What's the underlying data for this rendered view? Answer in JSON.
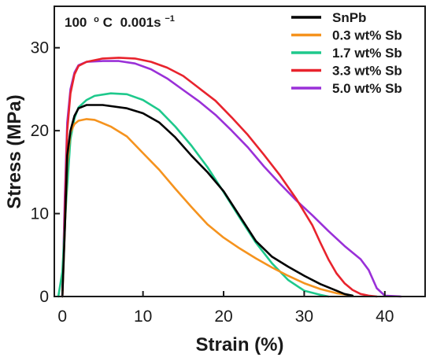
{
  "chart_data": {
    "type": "line",
    "title": "",
    "annotation": {
      "value": "100",
      "degree_symbol": "o",
      "unit": "C",
      "rate": "0.001s",
      "rate_exponent": "−1"
    },
    "xlabel": "Strain (%)",
    "ylabel": "Stress (MPa)",
    "xlim": [
      -1,
      45
    ],
    "ylim": [
      0,
      35
    ],
    "xticks": [
      0,
      10,
      20,
      30,
      40
    ],
    "yticks": [
      0,
      10,
      20,
      30
    ],
    "grid": false,
    "legend_position": "top-right",
    "series": [
      {
        "name": "SnPb",
        "color": "#000000",
        "points": [
          [
            0,
            0
          ],
          [
            0.3,
            8
          ],
          [
            0.6,
            17
          ],
          [
            1,
            20
          ],
          [
            1.5,
            21.8
          ],
          [
            2,
            22.7
          ],
          [
            3,
            23.1
          ],
          [
            5,
            23.1
          ],
          [
            8,
            22.7
          ],
          [
            10,
            22.1
          ],
          [
            12,
            21.0
          ],
          [
            14,
            19.2
          ],
          [
            16,
            17.0
          ],
          [
            18,
            15.0
          ],
          [
            20,
            12.7
          ],
          [
            22,
            9.7
          ],
          [
            24,
            6.7
          ],
          [
            26,
            4.8
          ],
          [
            28,
            3.6
          ],
          [
            30,
            2.5
          ],
          [
            32,
            1.5
          ],
          [
            34,
            0.7
          ],
          [
            35,
            0.3
          ],
          [
            36,
            0.1
          ]
        ]
      },
      {
        "name": "0.3 wt% Sb",
        "color": "#f5931e",
        "points": [
          [
            0,
            0
          ],
          [
            0.3,
            8
          ],
          [
            0.6,
            16
          ],
          [
            1,
            19.8
          ],
          [
            1.5,
            20.8
          ],
          [
            2,
            21.2
          ],
          [
            3,
            21.4
          ],
          [
            4,
            21.3
          ],
          [
            6,
            20.5
          ],
          [
            8,
            19.3
          ],
          [
            10,
            17.3
          ],
          [
            12,
            15.3
          ],
          [
            14,
            13.0
          ],
          [
            16,
            10.8
          ],
          [
            18,
            8.7
          ],
          [
            20,
            7.1
          ],
          [
            22,
            5.8
          ],
          [
            24,
            4.6
          ],
          [
            26,
            3.5
          ],
          [
            28,
            2.5
          ],
          [
            30,
            1.6
          ],
          [
            32,
            0.9
          ],
          [
            34,
            0.4
          ],
          [
            36,
            0.1
          ]
        ]
      },
      {
        "name": "1.7 wt% Sb",
        "color": "#1ec98c",
        "points": [
          [
            -0.5,
            0
          ],
          [
            0,
            3
          ],
          [
            0.5,
            12
          ],
          [
            1,
            19
          ],
          [
            1.5,
            21.5
          ],
          [
            2,
            22.8
          ],
          [
            3,
            23.7
          ],
          [
            4,
            24.2
          ],
          [
            6,
            24.5
          ],
          [
            8,
            24.4
          ],
          [
            10,
            23.7
          ],
          [
            12,
            22.5
          ],
          [
            14,
            20.5
          ],
          [
            16,
            18.2
          ],
          [
            18,
            15.6
          ],
          [
            20,
            12.6
          ],
          [
            22,
            9.5
          ],
          [
            24,
            6.5
          ],
          [
            26,
            4.0
          ],
          [
            28,
            2.0
          ],
          [
            30,
            0.7
          ],
          [
            32,
            0.2
          ],
          [
            33,
            0
          ]
        ]
      },
      {
        "name": "3.3 wt% Sb",
        "color": "#e8232d",
        "points": [
          [
            0,
            0
          ],
          [
            0.3,
            10
          ],
          [
            0.6,
            20
          ],
          [
            1,
            24.5
          ],
          [
            1.5,
            26.8
          ],
          [
            2,
            27.8
          ],
          [
            3,
            28.3
          ],
          [
            5,
            28.7
          ],
          [
            7,
            28.8
          ],
          [
            9,
            28.7
          ],
          [
            11,
            28.3
          ],
          [
            13,
            27.6
          ],
          [
            15,
            26.6
          ],
          [
            17,
            25.1
          ],
          [
            19,
            23.6
          ],
          [
            21,
            21.6
          ],
          [
            23,
            19.5
          ],
          [
            25,
            17.1
          ],
          [
            27,
            14.6
          ],
          [
            29,
            11.8
          ],
          [
            31,
            8.6
          ],
          [
            32,
            6.5
          ],
          [
            33,
            4.5
          ],
          [
            34,
            2.8
          ],
          [
            35,
            1.6
          ],
          [
            36,
            0.8
          ],
          [
            37,
            0.3
          ],
          [
            38,
            0.1
          ],
          [
            39,
            0
          ]
        ]
      },
      {
        "name": "5.0 wt% Sb",
        "color": "#9a30d8",
        "points": [
          [
            0,
            0
          ],
          [
            0.3,
            12
          ],
          [
            0.6,
            21
          ],
          [
            1,
            25
          ],
          [
            1.5,
            27
          ],
          [
            2,
            27.9
          ],
          [
            3,
            28.3
          ],
          [
            5,
            28.4
          ],
          [
            7,
            28.4
          ],
          [
            9,
            28.1
          ],
          [
            11,
            27.4
          ],
          [
            13,
            26.3
          ],
          [
            15,
            24.9
          ],
          [
            17,
            23.5
          ],
          [
            19,
            21.9
          ],
          [
            21,
            20.0
          ],
          [
            23,
            18.0
          ],
          [
            25,
            15.7
          ],
          [
            27,
            13.6
          ],
          [
            29,
            11.6
          ],
          [
            31,
            9.8
          ],
          [
            33,
            7.9
          ],
          [
            35,
            6.1
          ],
          [
            37,
            4.5
          ],
          [
            38,
            3.2
          ],
          [
            39,
            1.0
          ],
          [
            40,
            0.1
          ],
          [
            42,
            0
          ]
        ]
      }
    ]
  }
}
